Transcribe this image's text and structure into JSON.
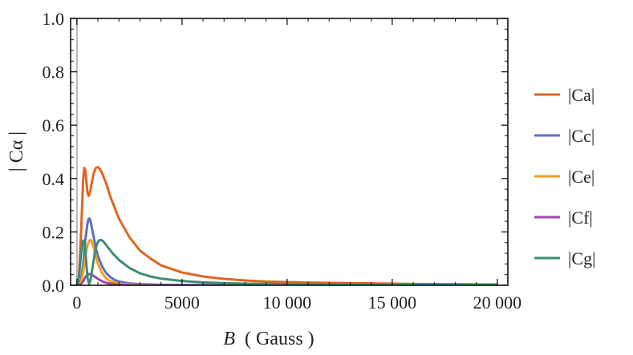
{
  "chart_data": {
    "type": "line",
    "xlabel_var": "B",
    "xlabel_unit": "( Gauss )",
    "ylabel": "| Cα |",
    "xlim": [
      -300,
      20500
    ],
    "ylim": [
      0,
      1.0
    ],
    "xticks": [
      0,
      5000,
      10000,
      15000,
      20000
    ],
    "xtick_labels": [
      "0",
      "5000",
      "10 000",
      "15 000",
      "20 000"
    ],
    "yticks": [
      0,
      0.2,
      0.4,
      0.6,
      0.8,
      1.0
    ],
    "ytick_labels": [
      "0.0",
      "0.2",
      "0.4",
      "0.6",
      "0.8",
      "1.0"
    ],
    "grid": false,
    "legend_position": "right",
    "vertical_marker_x": 0,
    "series": [
      {
        "name": "|Ca|",
        "color": "#e0661f",
        "x": [
          0,
          100,
          200,
          300,
          350,
          400,
          450,
          500,
          550,
          600,
          700,
          800,
          900,
          1000,
          1100,
          1200,
          1400,
          1600,
          1800,
          2000,
          2500,
          3000,
          3500,
          4000,
          5000,
          6000,
          7000,
          8000,
          9000,
          10000,
          12000,
          14000,
          16000,
          18000,
          20000
        ],
        "y": [
          0.0,
          0.04,
          0.2,
          0.4,
          0.44,
          0.43,
          0.39,
          0.35,
          0.335,
          0.34,
          0.38,
          0.42,
          0.44,
          0.443,
          0.435,
          0.42,
          0.38,
          0.33,
          0.29,
          0.25,
          0.18,
          0.13,
          0.1,
          0.075,
          0.048,
          0.033,
          0.024,
          0.018,
          0.014,
          0.012,
          0.009,
          0.007,
          0.005,
          0.004,
          0.003
        ]
      },
      {
        "name": "|Cc|",
        "color": "#5b6ec6",
        "x": [
          0,
          200,
          300,
          400,
          500,
          550,
          600,
          650,
          700,
          800,
          900,
          1000,
          1200,
          1400,
          1600,
          1800,
          2000,
          2500,
          3000,
          4000,
          6000,
          8000,
          10000,
          20000
        ],
        "y": [
          0.0,
          0.02,
          0.08,
          0.17,
          0.23,
          0.248,
          0.25,
          0.24,
          0.22,
          0.18,
          0.14,
          0.11,
          0.07,
          0.045,
          0.03,
          0.02,
          0.014,
          0.007,
          0.004,
          0.002,
          0.001,
          0.0,
          0.0,
          0.0
        ]
      },
      {
        "name": "|Ce|",
        "color": "#f2a01d",
        "x": [
          0,
          200,
          300,
          400,
          500,
          600,
          650,
          700,
          800,
          900,
          1000,
          1200,
          1400,
          1600,
          2000,
          2500,
          3000,
          4000,
          6000,
          20000
        ],
        "y": [
          0.0,
          0.01,
          0.05,
          0.11,
          0.15,
          0.168,
          0.17,
          0.165,
          0.14,
          0.11,
          0.08,
          0.045,
          0.025,
          0.015,
          0.006,
          0.003,
          0.001,
          0.0,
          0.0,
          0.0
        ]
      },
      {
        "name": "|Cf|",
        "color": "#9b4aab",
        "x": [
          0,
          200,
          300,
          400,
          500,
          600,
          700,
          800,
          1000,
          1200,
          1400,
          1600,
          2000,
          2500,
          3000,
          20000
        ],
        "y": [
          0.0,
          0.005,
          0.015,
          0.03,
          0.04,
          0.042,
          0.04,
          0.035,
          0.024,
          0.015,
          0.009,
          0.006,
          0.002,
          0.0,
          0.0,
          0.0
        ]
      },
      {
        "name": "|Cg|",
        "color": "#3f8c73",
        "x": [
          0,
          100,
          200,
          280,
          330,
          380,
          430,
          500,
          580,
          650,
          750,
          850,
          950,
          1050,
          1150,
          1250,
          1350,
          1500,
          1700,
          2000,
          2500,
          3000,
          3500,
          4000,
          5000,
          6000,
          7000,
          8000,
          10000,
          12000,
          15000,
          20000
        ],
        "y": [
          0.0,
          0.03,
          0.12,
          0.165,
          0.168,
          0.15,
          0.1,
          0.03,
          0.005,
          0.02,
          0.07,
          0.12,
          0.155,
          0.168,
          0.17,
          0.165,
          0.155,
          0.14,
          0.12,
          0.095,
          0.065,
          0.045,
          0.033,
          0.025,
          0.016,
          0.011,
          0.008,
          0.006,
          0.004,
          0.003,
          0.002,
          0.001
        ]
      }
    ]
  }
}
